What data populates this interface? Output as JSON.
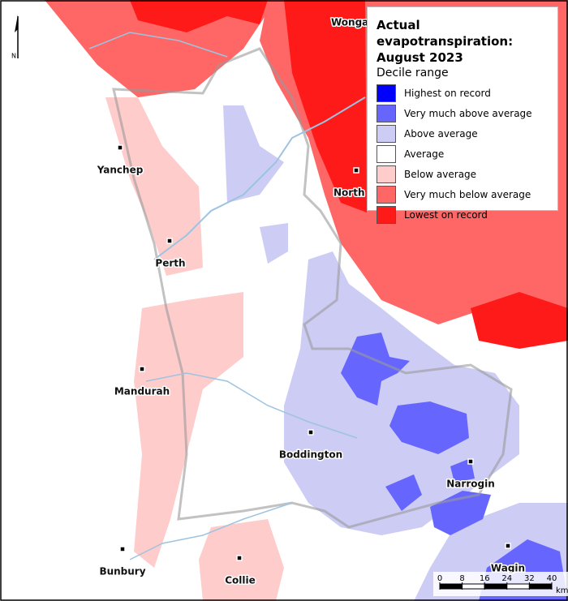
{
  "legend": {
    "title": "Actual evapotranspiration: August 2023",
    "subtitle": "Decile range",
    "items": [
      {
        "label": "Highest on record",
        "color": "#0000ff"
      },
      {
        "label": "Very much above average",
        "color": "#6666ff"
      },
      {
        "label": "Above average",
        "color": "#ccccf5"
      },
      {
        "label": "Average",
        "color": "#ffffff"
      },
      {
        "label": "Below average",
        "color": "#ffcccc"
      },
      {
        "label": "Very much below average",
        "color": "#ff6666"
      },
      {
        "label": "Lowest on record",
        "color": "#ff1a1a"
      }
    ]
  },
  "towns": [
    {
      "label": "Wonga"
    },
    {
      "label": "Yanchep"
    },
    {
      "label": "North"
    },
    {
      "label": "Perth"
    },
    {
      "label": "Mandurah"
    },
    {
      "label": "Boddington"
    },
    {
      "label": "Narrogin"
    },
    {
      "label": "Bunbury"
    },
    {
      "label": "Collie"
    },
    {
      "label": "Wagin"
    }
  ],
  "north_arrow": {
    "label": "N"
  },
  "scale_bar": {
    "ticks": [
      0,
      8,
      16,
      24,
      32,
      40
    ],
    "unit": "km"
  }
}
